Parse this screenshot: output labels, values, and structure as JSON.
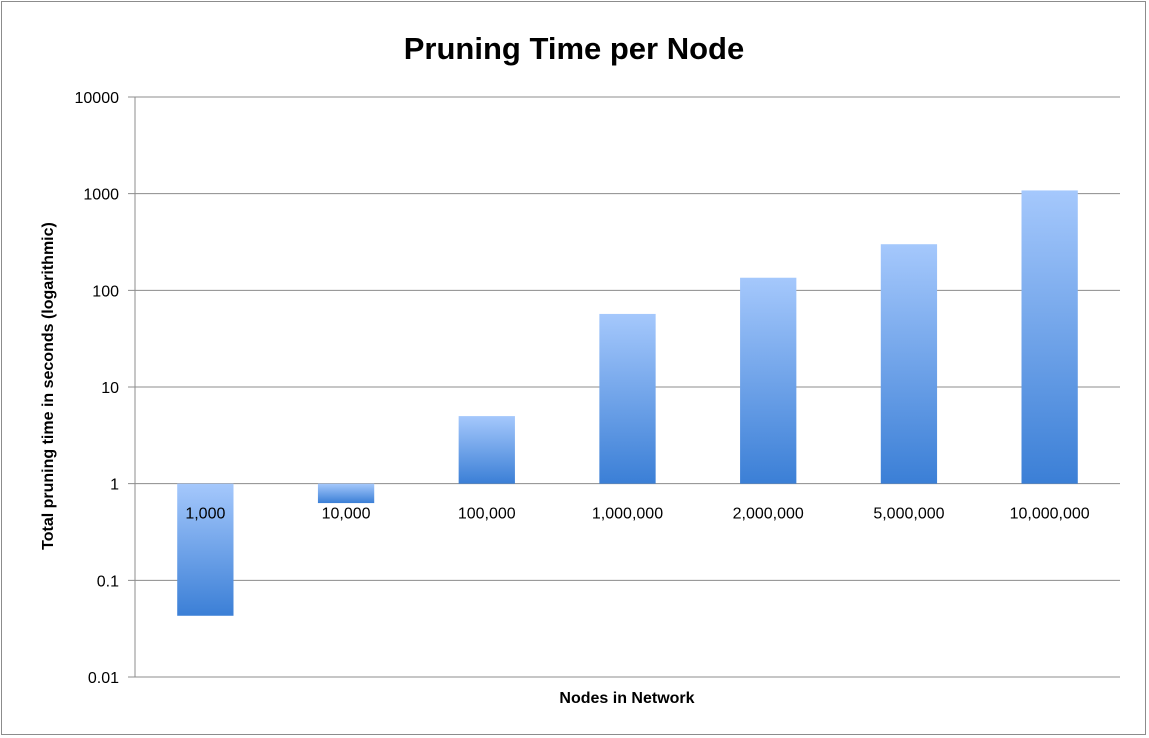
{
  "chart_data": {
    "type": "bar",
    "title": "Pruning Time per Node",
    "xlabel": "Nodes in Network",
    "ylabel": "Total pruning time in seconds (logarithmic)",
    "yscale": "log",
    "ylim": [
      0.01,
      10000
    ],
    "baseline": 1,
    "y_ticks": [
      "0.01",
      "0.1",
      "1",
      "10",
      "100",
      "1000",
      "10000"
    ],
    "categories": [
      "1,000",
      "10,000",
      "100,000",
      "1,000,000",
      "2,000,000",
      "5,000,000",
      "10,000,000"
    ],
    "values": [
      0.043,
      0.63,
      5,
      57,
      135,
      300,
      1080
    ],
    "grid": true,
    "legend": "none",
    "bar_color_top": "#a5c8fc",
    "bar_color_bottom": "#3b7fd6",
    "gridline_color": "#8c8c8c"
  }
}
